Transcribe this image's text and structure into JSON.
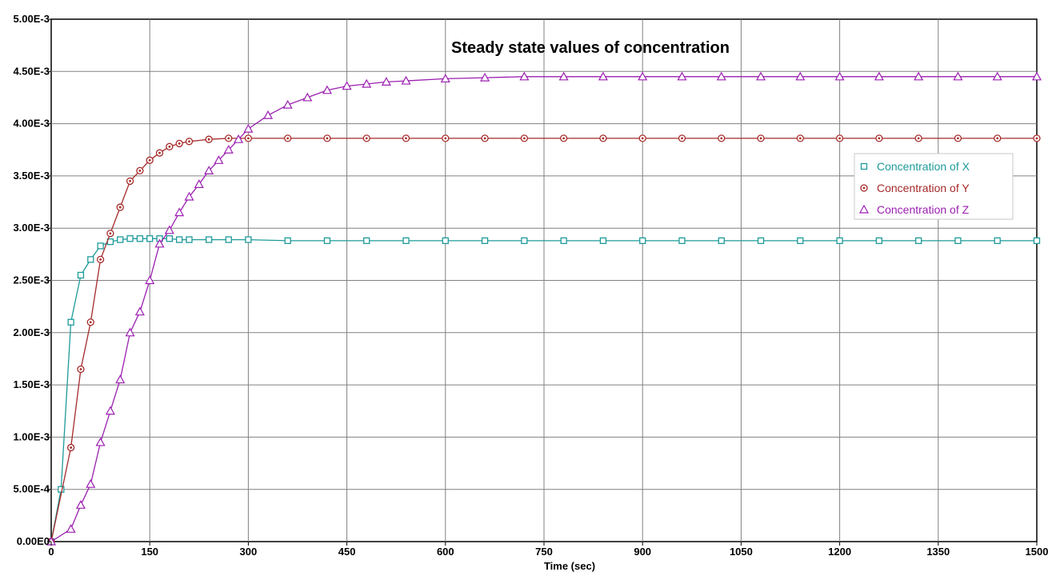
{
  "chart_data": {
    "type": "line",
    "title": "Steady state values of concentration",
    "xlabel": "Time (sec)",
    "ylabel": "",
    "xlim": [
      0,
      1500
    ],
    "ylim": [
      0,
      0.005
    ],
    "x_ticks": [
      "0",
      "150",
      "300",
      "450",
      "600",
      "750",
      "900",
      "1050",
      "1200",
      "1350",
      "1500"
    ],
    "y_ticks": [
      "0.00E0",
      "5.00E-4",
      "1.00E-3",
      "1.50E-3",
      "2.00E-3",
      "2.50E-3",
      "3.00E-3",
      "3.50E-3",
      "4.00E-3",
      "4.50E-3",
      "5.00E-3"
    ],
    "grid": true,
    "legend_position": "right",
    "series": [
      {
        "name": "Concentration of X",
        "color": "#1e9a9a",
        "marker": "square",
        "points": [
          [
            0,
            0
          ],
          [
            15,
            0.0005
          ],
          [
            30,
            0.0021
          ],
          [
            45,
            0.00255
          ],
          [
            60,
            0.0027
          ],
          [
            75,
            0.00283
          ],
          [
            90,
            0.00287
          ],
          [
            105,
            0.00289
          ],
          [
            120,
            0.0029
          ],
          [
            135,
            0.0029
          ],
          [
            150,
            0.0029
          ],
          [
            165,
            0.0029
          ],
          [
            180,
            0.0029
          ],
          [
            195,
            0.00289
          ],
          [
            210,
            0.00289
          ],
          [
            240,
            0.00289
          ],
          [
            270,
            0.00289
          ],
          [
            300,
            0.00289
          ],
          [
            360,
            0.00288
          ],
          [
            420,
            0.00288
          ],
          [
            480,
            0.00288
          ],
          [
            540,
            0.00288
          ],
          [
            600,
            0.00288
          ],
          [
            660,
            0.00288
          ],
          [
            720,
            0.00288
          ],
          [
            780,
            0.00288
          ],
          [
            840,
            0.00288
          ],
          [
            900,
            0.00288
          ],
          [
            960,
            0.00288
          ],
          [
            1020,
            0.00288
          ],
          [
            1080,
            0.00288
          ],
          [
            1140,
            0.00288
          ],
          [
            1200,
            0.00288
          ],
          [
            1260,
            0.00288
          ],
          [
            1320,
            0.00288
          ],
          [
            1380,
            0.00288
          ],
          [
            1440,
            0.00288
          ],
          [
            1500,
            0.00288
          ]
        ]
      },
      {
        "name": "Concentration of Y",
        "color": "#a52a2a",
        "marker": "circle",
        "points": [
          [
            0,
            0
          ],
          [
            30,
            0.0009
          ],
          [
            45,
            0.00165
          ],
          [
            60,
            0.0021
          ],
          [
            75,
            0.0027
          ],
          [
            90,
            0.00295
          ],
          [
            105,
            0.0032
          ],
          [
            120,
            0.00345
          ],
          [
            135,
            0.00355
          ],
          [
            150,
            0.00365
          ],
          [
            165,
            0.00372
          ],
          [
            180,
            0.00378
          ],
          [
            195,
            0.00381
          ],
          [
            210,
            0.00383
          ],
          [
            240,
            0.00385
          ],
          [
            270,
            0.00386
          ],
          [
            300,
            0.00386
          ],
          [
            360,
            0.00386
          ],
          [
            420,
            0.00386
          ],
          [
            480,
            0.00386
          ],
          [
            540,
            0.00386
          ],
          [
            600,
            0.00386
          ],
          [
            660,
            0.00386
          ],
          [
            720,
            0.00386
          ],
          [
            780,
            0.00386
          ],
          [
            840,
            0.00386
          ],
          [
            900,
            0.00386
          ],
          [
            960,
            0.00386
          ],
          [
            1020,
            0.00386
          ],
          [
            1080,
            0.00386
          ],
          [
            1140,
            0.00386
          ],
          [
            1200,
            0.00386
          ],
          [
            1260,
            0.00386
          ],
          [
            1320,
            0.00386
          ],
          [
            1380,
            0.00386
          ],
          [
            1440,
            0.00386
          ],
          [
            1500,
            0.00386
          ]
        ]
      },
      {
        "name": "Concentration of Z",
        "color": "#9b1fb0",
        "marker": "triangle",
        "points": [
          [
            0,
            0
          ],
          [
            30,
            0.00012
          ],
          [
            45,
            0.00035
          ],
          [
            60,
            0.00055
          ],
          [
            75,
            0.00095
          ],
          [
            90,
            0.00125
          ],
          [
            105,
            0.00155
          ],
          [
            120,
            0.002
          ],
          [
            135,
            0.0022
          ],
          [
            150,
            0.0025
          ],
          [
            165,
            0.00285
          ],
          [
            180,
            0.00298
          ],
          [
            195,
            0.00315
          ],
          [
            210,
            0.0033
          ],
          [
            225,
            0.00342
          ],
          [
            240,
            0.00355
          ],
          [
            255,
            0.00365
          ],
          [
            270,
            0.00375
          ],
          [
            285,
            0.00385
          ],
          [
            300,
            0.00395
          ],
          [
            330,
            0.00408
          ],
          [
            360,
            0.00418
          ],
          [
            390,
            0.00425
          ],
          [
            420,
            0.00432
          ],
          [
            450,
            0.00436
          ],
          [
            480,
            0.00438
          ],
          [
            510,
            0.0044
          ],
          [
            540,
            0.00441
          ],
          [
            600,
            0.00443
          ],
          [
            660,
            0.00444
          ],
          [
            720,
            0.00445
          ],
          [
            780,
            0.00445
          ],
          [
            840,
            0.00445
          ],
          [
            900,
            0.00445
          ],
          [
            960,
            0.00445
          ],
          [
            1020,
            0.00445
          ],
          [
            1080,
            0.00445
          ],
          [
            1140,
            0.00445
          ],
          [
            1200,
            0.00445
          ],
          [
            1260,
            0.00445
          ],
          [
            1320,
            0.00445
          ],
          [
            1380,
            0.00445
          ],
          [
            1440,
            0.00445
          ],
          [
            1500,
            0.00445
          ]
        ]
      }
    ]
  }
}
